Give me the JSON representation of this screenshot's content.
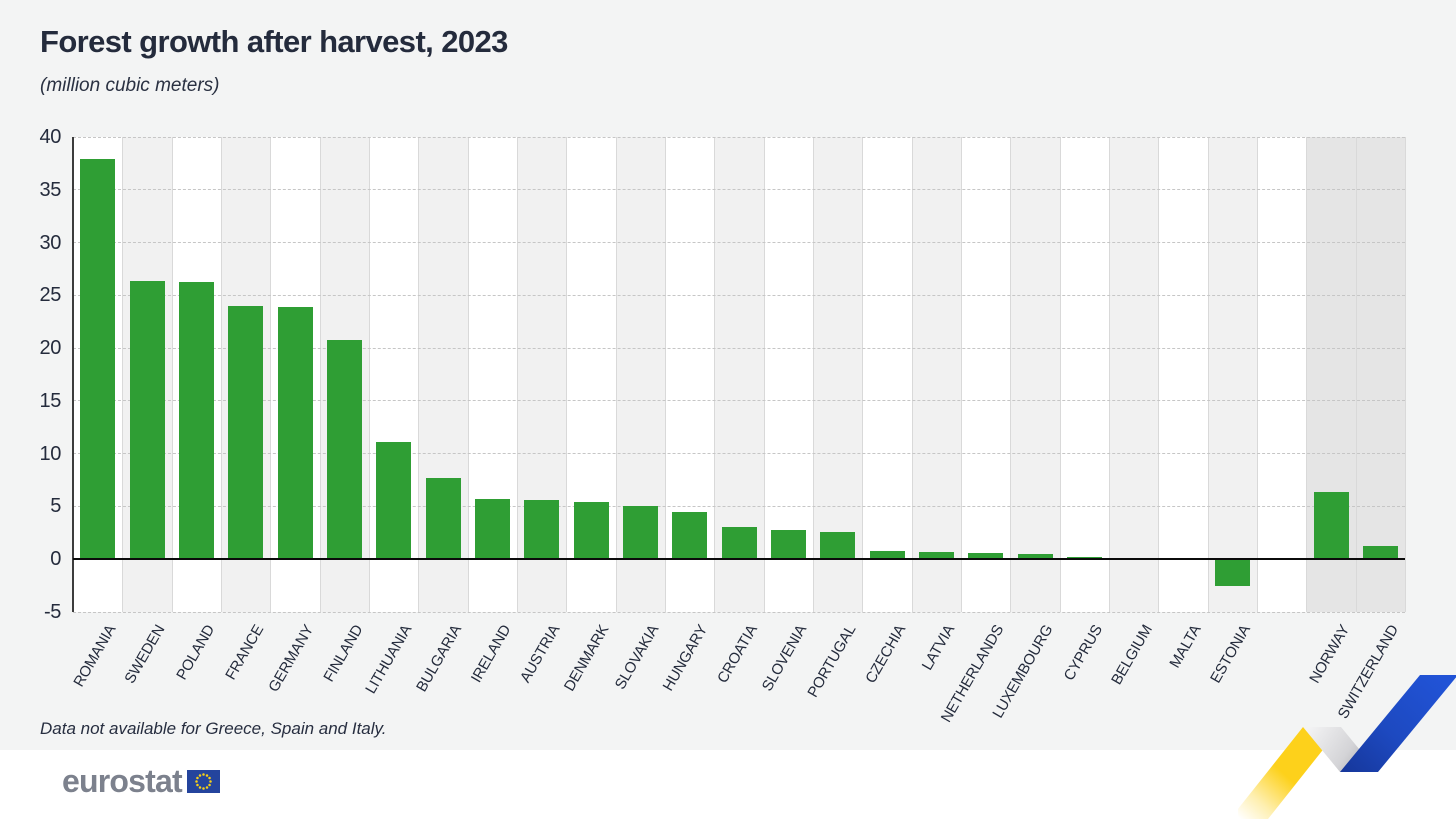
{
  "header": {
    "title": "Forest growth after harvest, 2023",
    "subtitle": "(million cubic meters)"
  },
  "chart_data": {
    "type": "bar",
    "title": "Forest growth after harvest, 2023",
    "unit_label": "(million cubic meters)",
    "categories": [
      "ROMANIA",
      "SWEDEN",
      "POLAND",
      "FRANCE",
      "GERMANY",
      "FINLAND",
      "LITHUANIA",
      "BULGARIA",
      "IRELAND",
      "AUSTRIA",
      "DENMARK",
      "SLOVAKIA",
      "HUNGARY",
      "CROATIA",
      "SLOVENIA",
      "PORTUGAL",
      "CZECHIA",
      "LATVIA",
      "NETHERLANDS",
      "LUXEMBOURG",
      "CYPRUS",
      "BELGIUM",
      "MALTA",
      "ESTONIA",
      "NORWAY",
      "SWITZERLAND"
    ],
    "values": [
      37.9,
      26.4,
      26.3,
      24.0,
      23.9,
      20.8,
      11.1,
      7.7,
      5.7,
      5.6,
      5.4,
      5.0,
      4.5,
      3.1,
      2.8,
      2.6,
      0.8,
      0.7,
      0.6,
      0.5,
      0.2,
      0.1,
      0.0,
      -2.5,
      6.4,
      1.3
    ],
    "efta_categories": [
      "NORWAY",
      "SWITZERLAND"
    ],
    "gap_before_category": "NORWAY",
    "ylim": [
      -5,
      40
    ],
    "yticks": [
      40,
      35,
      30,
      25,
      20,
      15,
      10,
      5,
      0,
      -5
    ],
    "grid": true,
    "legend_position": "none",
    "xlabel": "",
    "ylabel": "",
    "bar_color": "#2f9e34",
    "band_colors": [
      "#ffffff",
      "#f1f1f1"
    ],
    "efta_band_color": "#e5e5e5"
  },
  "footnote": "Data not available for Greece, Spain and Italy.",
  "footer": {
    "logo_text": "eurostat"
  },
  "colors": {
    "bar_green": "#2f9e34",
    "text_navy": "#242b3c",
    "page_background": "#f3f4f4",
    "logo_gray": "#7c818d",
    "eu_flag_blue": "#24449d",
    "eu_flag_star_yellow": "#f9d215",
    "ribbon_yellow": "#fdd11b",
    "ribbon_blue": "#2153d6"
  }
}
